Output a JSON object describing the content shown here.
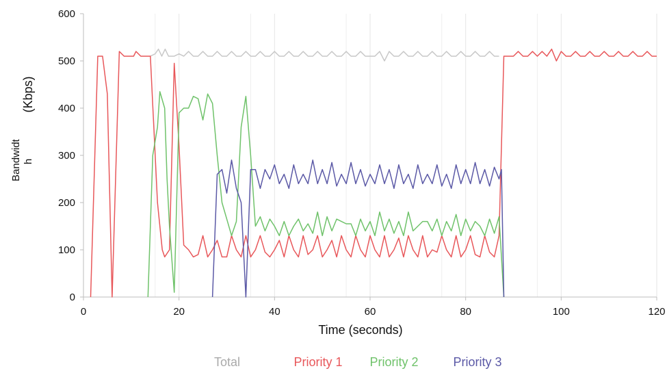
{
  "chart_data": {
    "type": "line",
    "title": "",
    "xlabel": "Time (seconds)",
    "ylabel_lines": [
      "Bandwidt",
      "h"
    ],
    "ylabel_unit": "(Kbps)",
    "xlim": [
      0,
      120
    ],
    "ylim": [
      0,
      600
    ],
    "xticks": [
      0,
      20,
      40,
      60,
      80,
      100,
      120
    ],
    "yticks": [
      0,
      100,
      200,
      300,
      400,
      500,
      600
    ],
    "grid": true,
    "legend_position": "bottom",
    "series": [
      {
        "name": "Total",
        "color": "#c8c8c8",
        "points": [
          [
            14,
            510
          ],
          [
            15,
            515
          ],
          [
            15.7,
            525
          ],
          [
            16.4,
            510
          ],
          [
            17.1,
            525
          ],
          [
            17.8,
            510
          ],
          [
            19,
            510
          ],
          [
            20,
            515
          ],
          [
            21,
            510
          ],
          [
            22,
            520
          ],
          [
            23,
            510
          ],
          [
            24,
            510
          ],
          [
            25,
            520
          ],
          [
            26,
            510
          ],
          [
            27,
            510
          ],
          [
            28,
            520
          ],
          [
            29,
            510
          ],
          [
            30,
            510
          ],
          [
            31,
            520
          ],
          [
            32,
            510
          ],
          [
            33,
            510
          ],
          [
            34,
            520
          ],
          [
            35,
            510
          ],
          [
            36,
            510
          ],
          [
            37,
            520
          ],
          [
            38,
            510
          ],
          [
            39,
            510
          ],
          [
            40,
            520
          ],
          [
            41,
            510
          ],
          [
            42,
            510
          ],
          [
            43,
            520
          ],
          [
            44,
            510
          ],
          [
            45,
            510
          ],
          [
            46,
            520
          ],
          [
            47,
            510
          ],
          [
            48,
            510
          ],
          [
            49,
            520
          ],
          [
            50,
            510
          ],
          [
            51,
            510
          ],
          [
            52,
            520
          ],
          [
            53,
            510
          ],
          [
            54,
            510
          ],
          [
            55,
            520
          ],
          [
            56,
            510
          ],
          [
            57,
            510
          ],
          [
            58,
            520
          ],
          [
            59,
            510
          ],
          [
            60,
            510
          ],
          [
            61,
            510
          ],
          [
            62,
            520
          ],
          [
            63,
            500
          ],
          [
            64,
            520
          ],
          [
            65,
            510
          ],
          [
            66,
            510
          ],
          [
            67,
            520
          ],
          [
            68,
            510
          ],
          [
            69,
            510
          ],
          [
            70,
            520
          ],
          [
            71,
            510
          ],
          [
            72,
            510
          ],
          [
            73,
            520
          ],
          [
            74,
            510
          ],
          [
            75,
            510
          ],
          [
            76,
            520
          ],
          [
            77,
            510
          ],
          [
            78,
            510
          ],
          [
            79,
            520
          ],
          [
            80,
            510
          ],
          [
            81,
            510
          ],
          [
            82,
            520
          ],
          [
            83,
            510
          ],
          [
            84,
            510
          ],
          [
            85,
            520
          ],
          [
            86,
            510
          ],
          [
            87,
            510
          ]
        ]
      },
      {
        "name": "Priority 1",
        "color": "#e8575a",
        "points": [
          [
            1.5,
            0
          ],
          [
            3,
            510
          ],
          [
            4,
            510
          ],
          [
            5,
            430
          ],
          [
            6,
            0
          ],
          [
            7.5,
            520
          ],
          [
            8.5,
            510
          ],
          [
            9.5,
            510
          ],
          [
            10.5,
            510
          ],
          [
            11,
            520
          ],
          [
            12,
            510
          ],
          [
            13,
            510
          ],
          [
            14,
            510
          ],
          [
            15.5,
            200
          ],
          [
            16.5,
            100
          ],
          [
            17,
            85
          ],
          [
            18,
            100
          ],
          [
            19,
            495
          ],
          [
            20,
            320
          ],
          [
            21,
            110
          ],
          [
            22,
            100
          ],
          [
            23,
            85
          ],
          [
            24,
            90
          ],
          [
            25,
            130
          ],
          [
            26,
            85
          ],
          [
            27,
            100
          ],
          [
            28,
            120
          ],
          [
            29,
            85
          ],
          [
            30,
            85
          ],
          [
            31,
            130
          ],
          [
            32,
            100
          ],
          [
            33,
            85
          ],
          [
            34,
            130
          ],
          [
            35,
            85
          ],
          [
            36,
            100
          ],
          [
            37,
            130
          ],
          [
            38,
            95
          ],
          [
            39,
            85
          ],
          [
            40,
            100
          ],
          [
            41,
            120
          ],
          [
            42,
            85
          ],
          [
            43,
            130
          ],
          [
            44,
            100
          ],
          [
            45,
            85
          ],
          [
            46,
            130
          ],
          [
            47,
            90
          ],
          [
            48,
            100
          ],
          [
            49,
            130
          ],
          [
            50,
            85
          ],
          [
            51,
            100
          ],
          [
            52,
            120
          ],
          [
            53,
            85
          ],
          [
            54,
            130
          ],
          [
            55,
            100
          ],
          [
            56,
            85
          ],
          [
            57,
            130
          ],
          [
            58,
            100
          ],
          [
            59,
            85
          ],
          [
            60,
            130
          ],
          [
            61,
            100
          ],
          [
            62,
            85
          ],
          [
            63,
            130
          ],
          [
            64,
            85
          ],
          [
            65,
            100
          ],
          [
            66,
            125
          ],
          [
            67,
            85
          ],
          [
            68,
            130
          ],
          [
            69,
            100
          ],
          [
            70,
            85
          ],
          [
            71,
            130
          ],
          [
            72,
            85
          ],
          [
            73,
            100
          ],
          [
            74,
            95
          ],
          [
            75,
            130
          ],
          [
            76,
            100
          ],
          [
            77,
            85
          ],
          [
            78,
            130
          ],
          [
            79,
            85
          ],
          [
            80,
            100
          ],
          [
            81,
            130
          ],
          [
            82,
            90
          ],
          [
            83,
            85
          ],
          [
            84,
            130
          ],
          [
            85,
            95
          ],
          [
            86,
            85
          ],
          [
            87,
            130
          ],
          [
            88,
            510
          ],
          [
            89,
            510
          ],
          [
            90,
            510
          ],
          [
            91,
            520
          ],
          [
            92,
            510
          ],
          [
            93,
            510
          ],
          [
            94,
            520
          ],
          [
            95,
            510
          ],
          [
            96,
            520
          ],
          [
            97,
            510
          ],
          [
            98,
            525
          ],
          [
            99,
            500
          ],
          [
            100,
            520
          ],
          [
            101,
            510
          ],
          [
            102,
            510
          ],
          [
            103,
            520
          ],
          [
            104,
            510
          ],
          [
            105,
            510
          ],
          [
            106,
            520
          ],
          [
            107,
            510
          ],
          [
            108,
            510
          ],
          [
            109,
            520
          ],
          [
            110,
            510
          ],
          [
            111,
            510
          ],
          [
            112,
            520
          ],
          [
            113,
            510
          ],
          [
            114,
            510
          ],
          [
            115,
            520
          ],
          [
            116,
            510
          ],
          [
            117,
            510
          ],
          [
            118,
            520
          ],
          [
            119,
            510
          ],
          [
            120,
            510
          ]
        ]
      },
      {
        "name": "Priority 2",
        "color": "#6fc26a",
        "points": [
          [
            13.5,
            0
          ],
          [
            14.5,
            300
          ],
          [
            15.5,
            360
          ],
          [
            16,
            435
          ],
          [
            17,
            400
          ],
          [
            17.5,
            250
          ],
          [
            18,
            150
          ],
          [
            19,
            10
          ],
          [
            20,
            390
          ],
          [
            21,
            400
          ],
          [
            22,
            400
          ],
          [
            23,
            425
          ],
          [
            24,
            420
          ],
          [
            25,
            375
          ],
          [
            26,
            430
          ],
          [
            27,
            410
          ],
          [
            28,
            300
          ],
          [
            29,
            200
          ],
          [
            30,
            165
          ],
          [
            31,
            130
          ],
          [
            32,
            160
          ],
          [
            33,
            360
          ],
          [
            34,
            425
          ],
          [
            35,
            300
          ],
          [
            36,
            150
          ],
          [
            37,
            170
          ],
          [
            38,
            140
          ],
          [
            39,
            165
          ],
          [
            40,
            150
          ],
          [
            41,
            130
          ],
          [
            42,
            160
          ],
          [
            43,
            130
          ],
          [
            44,
            150
          ],
          [
            45,
            165
          ],
          [
            46,
            140
          ],
          [
            47,
            155
          ],
          [
            48,
            135
          ],
          [
            49,
            180
          ],
          [
            50,
            130
          ],
          [
            51,
            170
          ],
          [
            52,
            140
          ],
          [
            53,
            165
          ],
          [
            54,
            160
          ],
          [
            55,
            155
          ],
          [
            56,
            155
          ],
          [
            57,
            130
          ],
          [
            58,
            165
          ],
          [
            59,
            140
          ],
          [
            60,
            160
          ],
          [
            61,
            130
          ],
          [
            62,
            180
          ],
          [
            63,
            140
          ],
          [
            64,
            165
          ],
          [
            65,
            135
          ],
          [
            66,
            160
          ],
          [
            67,
            130
          ],
          [
            68,
            180
          ],
          [
            69,
            140
          ],
          [
            70,
            150
          ],
          [
            71,
            160
          ],
          [
            72,
            160
          ],
          [
            73,
            140
          ],
          [
            74,
            165
          ],
          [
            75,
            130
          ],
          [
            76,
            160
          ],
          [
            77,
            140
          ],
          [
            78,
            175
          ],
          [
            79,
            130
          ],
          [
            80,
            165
          ],
          [
            81,
            140
          ],
          [
            82,
            160
          ],
          [
            83,
            150
          ],
          [
            84,
            130
          ],
          [
            85,
            165
          ],
          [
            86,
            135
          ],
          [
            87,
            170
          ],
          [
            88,
            0
          ]
        ]
      },
      {
        "name": "Priority 3",
        "color": "#5b59a6",
        "points": [
          [
            27,
            0
          ],
          [
            28,
            260
          ],
          [
            29,
            270
          ],
          [
            30,
            220
          ],
          [
            31,
            290
          ],
          [
            32,
            230
          ],
          [
            33,
            200
          ],
          [
            34,
            0
          ],
          [
            35,
            270
          ],
          [
            36,
            270
          ],
          [
            37,
            230
          ],
          [
            38,
            270
          ],
          [
            39,
            250
          ],
          [
            40,
            280
          ],
          [
            41,
            240
          ],
          [
            42,
            260
          ],
          [
            43,
            230
          ],
          [
            44,
            280
          ],
          [
            45,
            240
          ],
          [
            46,
            260
          ],
          [
            47,
            240
          ],
          [
            48,
            290
          ],
          [
            49,
            240
          ],
          [
            50,
            270
          ],
          [
            51,
            240
          ],
          [
            52,
            285
          ],
          [
            53,
            235
          ],
          [
            54,
            260
          ],
          [
            55,
            240
          ],
          [
            56,
            285
          ],
          [
            57,
            240
          ],
          [
            58,
            270
          ],
          [
            59,
            235
          ],
          [
            60,
            260
          ],
          [
            61,
            240
          ],
          [
            62,
            280
          ],
          [
            63,
            240
          ],
          [
            64,
            270
          ],
          [
            65,
            230
          ],
          [
            66,
            280
          ],
          [
            67,
            240
          ],
          [
            68,
            260
          ],
          [
            69,
            230
          ],
          [
            70,
            280
          ],
          [
            71,
            240
          ],
          [
            72,
            260
          ],
          [
            73,
            240
          ],
          [
            74,
            280
          ],
          [
            75,
            235
          ],
          [
            76,
            260
          ],
          [
            77,
            230
          ],
          [
            78,
            280
          ],
          [
            79,
            240
          ],
          [
            80,
            270
          ],
          [
            81,
            240
          ],
          [
            82,
            285
          ],
          [
            83,
            240
          ],
          [
            84,
            270
          ],
          [
            85,
            235
          ],
          [
            86,
            275
          ],
          [
            87,
            250
          ],
          [
            87.5,
            270
          ],
          [
            88,
            0
          ]
        ]
      }
    ]
  }
}
